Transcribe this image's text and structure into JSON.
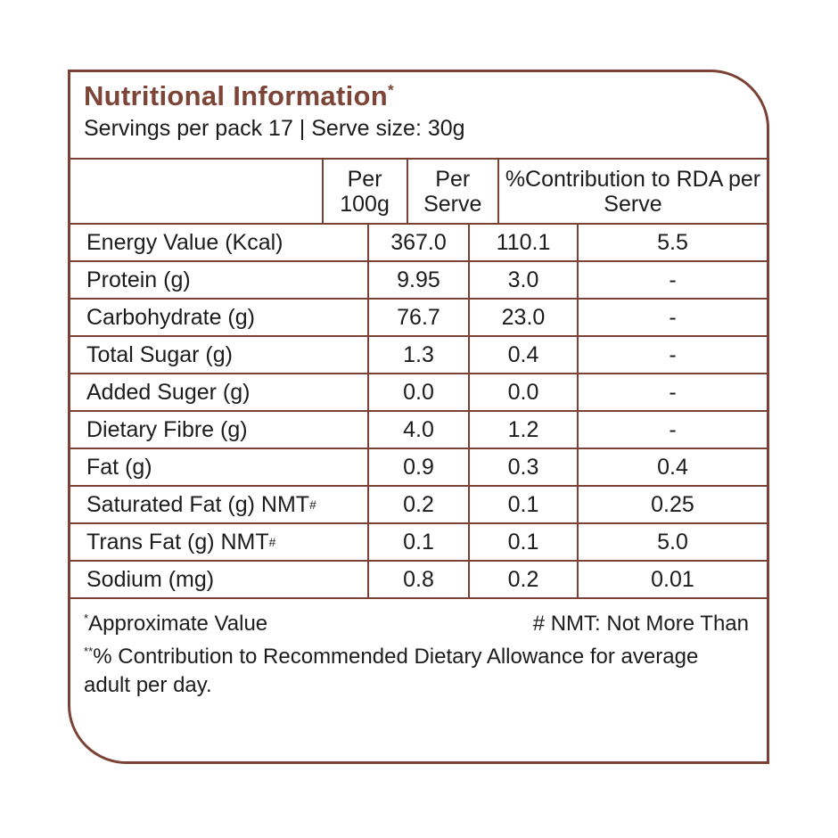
{
  "colors": {
    "line_brown": "#7b4134",
    "title_brown": "#7c4537",
    "text_black": "#1c1c1c"
  },
  "header": {
    "title": "Nutritional Information",
    "title_superscript": "*",
    "subtitle": "Servings per pack 17 | Serve size: 30g"
  },
  "table": {
    "column_headers": {
      "nutrient": "",
      "per_100g": "Per 100g",
      "per_serve": "Per Serve",
      "rda": "%Contribution to RDA per Serve"
    },
    "rows": [
      {
        "label": "Energy Value (Kcal)",
        "sup": "",
        "per_100g": "367.0",
        "per_serve": "110.1",
        "rda": "5.5"
      },
      {
        "label": "Protein (g)",
        "sup": "",
        "per_100g": "9.95",
        "per_serve": "3.0",
        "rda": "-"
      },
      {
        "label": "Carbohydrate (g)",
        "sup": "",
        "per_100g": "76.7",
        "per_serve": "23.0",
        "rda": "-"
      },
      {
        "label": "Total Sugar (g)",
        "sup": "",
        "per_100g": "1.3",
        "per_serve": "0.4",
        "rda": "-"
      },
      {
        "label": "Added Suger (g)",
        "sup": "",
        "per_100g": "0.0",
        "per_serve": "0.0",
        "rda": "-"
      },
      {
        "label": "Dietary Fibre (g)",
        "sup": "",
        "per_100g": "4.0",
        "per_serve": "1.2",
        "rda": "-"
      },
      {
        "label": "Fat (g)",
        "sup": "",
        "per_100g": "0.9",
        "per_serve": "0.3",
        "rda": "0.4"
      },
      {
        "label": "Saturated Fat (g) NMT",
        "sup": "#",
        "per_100g": "0.2",
        "per_serve": "0.1",
        "rda": "0.25"
      },
      {
        "label": "Trans Fat (g) NMT",
        "sup": "#",
        "per_100g": "0.1",
        "per_serve": "0.1",
        "rda": "5.0"
      },
      {
        "label": "Sodium (mg)",
        "sup": "",
        "per_100g": "0.8",
        "per_serve": "0.2",
        "rda": "0.01"
      }
    ]
  },
  "footnotes": {
    "approx_sup": "*",
    "approx_text": "Approximate Value",
    "nmt_text": "# NMT: Not More Than",
    "rda_sup": "**",
    "rda_text": "% Contribution to Recommended Dietary Allowance for average adult per day."
  }
}
